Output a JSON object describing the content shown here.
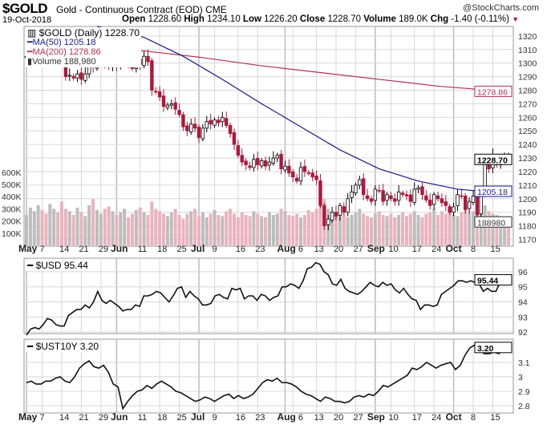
{
  "header": {
    "symbol": "$GOLD",
    "name": "Gold - Continuous Contract (EOD) CME",
    "copyright": "@StockCharts.com",
    "date": "19-Oct-2018",
    "open_label": "Open",
    "open": "1228.60",
    "high_label": "High",
    "high": "1234.10",
    "low_label": "Low",
    "low": "1226.20",
    "close_label": "Close",
    "close": "1228.70",
    "volume_label": "Volume",
    "volume": "189.0K",
    "chg_label": "Chg",
    "chg": "-1.40 (-0.11%)"
  },
  "colors": {
    "up": "#000000",
    "down": "#b0173a",
    "ma50": "#1a1a8c",
    "ma200": "#b03050",
    "vol_down": "#eab3bd",
    "vol_up": "#bdbdbd",
    "grid": "#d8d8d8"
  },
  "chart_data": [
    {
      "type": "candlestick",
      "title": "$GOLD (Daily) 1228.70",
      "legend": [
        "MA(50) 1205.18",
        "MA(200) 1278.86",
        "Volume 188,980"
      ],
      "ylim": [
        1165,
        1327
      ],
      "y_ticks": [
        1320,
        1310,
        1300,
        1290,
        1280,
        1270,
        1260,
        1250,
        1240,
        1230,
        1220,
        1210,
        1200,
        1190,
        1180,
        1170
      ],
      "vol_ticks": [
        {
          "v": 600000,
          "label": "600K"
        },
        {
          "v": 500000,
          "label": "500K"
        },
        {
          "v": 400000,
          "label": "400K"
        },
        {
          "v": 300000,
          "label": "300K"
        },
        {
          "v": 200000,
          "label": "200K"
        },
        {
          "v": 100000,
          "label": "100K"
        }
      ],
      "last_labels": {
        "close": "1228.70",
        "ma200": "1278.86",
        "ma50": "1205.18",
        "volume": "188980"
      },
      "closes": [
        1305,
        1311,
        1313,
        1315,
        1314,
        1313,
        1315,
        1318,
        1316,
        1300,
        1290,
        1291,
        1289,
        1292,
        1288,
        1292,
        1301,
        1297,
        1300,
        1305,
        1300,
        1297,
        1299,
        1298,
        1301,
        1303,
        1300,
        1296,
        1302,
        1299,
        1305,
        1301,
        1280,
        1279,
        1275,
        1268,
        1269,
        1270,
        1266,
        1262,
        1253,
        1250,
        1255,
        1252,
        1245,
        1252,
        1257,
        1255,
        1258,
        1256,
        1260,
        1254,
        1248,
        1240,
        1232,
        1227,
        1225,
        1223,
        1229,
        1225,
        1228,
        1224,
        1227,
        1230,
        1232,
        1222,
        1224,
        1219,
        1216,
        1213,
        1223,
        1220,
        1219,
        1216,
        1214,
        1195,
        1180,
        1185,
        1190,
        1187,
        1195,
        1190,
        1200,
        1205,
        1210,
        1214,
        1203,
        1200,
        1198,
        1207,
        1206,
        1198,
        1203,
        1200,
        1198,
        1205,
        1203,
        1202,
        1198,
        1207,
        1208,
        1203,
        1199,
        1195,
        1203,
        1200,
        1197,
        1195,
        1190,
        1194,
        1203,
        1202,
        1192,
        1198,
        1202,
        1188,
        1204,
        1226,
        1222,
        1232,
        1225,
        1228,
        1230,
        1228.7
      ],
      "volumes": [
        250000,
        310000,
        280000,
        330000,
        290000,
        260000,
        340000,
        300000,
        270000,
        360000,
        300000,
        280000,
        250000,
        310000,
        270000,
        240000,
        330000,
        380000,
        290000,
        260000,
        300000,
        320000,
        280000,
        250000,
        270000,
        300000,
        230000,
        260000,
        290000,
        310000,
        270000,
        250000,
        360000,
        300000,
        280000,
        260000,
        240000,
        270000,
        300000,
        250000,
        220000,
        260000,
        280000,
        300000,
        240000,
        270000,
        230000,
        260000,
        290000,
        250000,
        240000,
        280000,
        300000,
        260000,
        230000,
        270000,
        250000,
        240000,
        280000,
        260000,
        240000,
        230000,
        270000,
        250000,
        260000,
        300000,
        280000,
        250000,
        240000,
        260000,
        230000,
        250000,
        290000,
        270000,
        300000,
        330000,
        380000,
        300000,
        270000,
        250000,
        240000,
        260000,
        230000,
        250000,
        270000,
        300000,
        260000,
        240000,
        230000,
        260000,
        280000,
        250000,
        240000,
        260000,
        230000,
        250000,
        270000,
        240000,
        260000,
        280000,
        250000,
        230000,
        260000,
        270000,
        300000,
        250000,
        280000,
        260000,
        290000,
        250000,
        240000,
        270000,
        300000,
        260000,
        280000,
        250000,
        300000,
        330000,
        280000,
        260000,
        250000,
        240000,
        230000,
        188980
      ],
      "ma50": [
        [
          18,
          1327
        ],
        [
          30,
          1319
        ],
        [
          40,
          1305
        ],
        [
          50,
          1288
        ],
        [
          60,
          1270
        ],
        [
          70,
          1253
        ],
        [
          80,
          1236
        ],
        [
          90,
          1222
        ],
        [
          100,
          1213
        ],
        [
          110,
          1207
        ],
        [
          118,
          1205
        ],
        [
          123,
          1205.18
        ]
      ],
      "ma200": [
        [
          10,
          1309
        ],
        [
          30,
          1309
        ],
        [
          45,
          1304
        ],
        [
          60,
          1298
        ],
        [
          75,
          1293
        ],
        [
          90,
          1288
        ],
        [
          105,
          1283
        ],
        [
          123,
          1278.86
        ]
      ]
    },
    {
      "type": "line",
      "title": "$USD 95.44",
      "ylim": [
        91.9,
        96.9
      ],
      "y_ticks": [
        96,
        95,
        94,
        93,
        92
      ],
      "last": "95.44",
      "values": [
        91.8,
        92.2,
        92.3,
        92.2,
        92.5,
        92.9,
        92.8,
        92.5,
        92.4,
        92.4,
        93.1,
        93.3,
        93.5,
        93.5,
        93.8,
        93.6,
        94.0,
        94.7,
        94.1,
        93.9,
        94.1,
        93.9,
        93.7,
        93.4,
        93.5,
        93.5,
        93.8,
        93.7,
        94.4,
        94.4,
        94.5,
        94.7,
        94.6,
        94.3,
        94.0,
        94.4,
        94.9,
        95.0,
        94.3,
        94.7,
        94.4,
        94.2,
        93.8,
        93.8,
        93.9,
        94.4,
        94.5,
        94.3,
        94.2,
        94.9,
        94.8,
        94.9,
        94.2,
        94.4,
        94.4,
        94.1,
        94.5,
        94.4,
        94.1,
        94.3,
        94.4,
        95.0,
        95.0,
        95.2,
        95.1,
        94.9,
        95.4,
        96.2,
        96.3,
        96.6,
        96.5,
        96.0,
        95.8,
        95.2,
        95.1,
        95.5,
        94.9,
        94.7,
        94.6,
        94.5,
        94.7,
        95.0,
        95.3,
        95.1,
        95.0,
        95.3,
        95.1,
        95.2,
        94.8,
        94.6,
        94.9,
        94.5,
        94.2,
        94.1,
        93.5,
        93.8,
        93.8,
        93.7,
        93.8,
        94.5,
        94.7,
        94.9,
        95.1,
        95.4,
        95.4,
        95.3,
        95.4,
        95.3,
        95.2,
        94.7,
        94.9,
        94.7,
        94.7,
        95.3,
        95.6,
        95.44
      ]
    },
    {
      "type": "line",
      "title": "$UST10Y 3.20",
      "ylim": [
        2.75,
        3.26
      ],
      "y_ticks": [
        3.1,
        3.0,
        2.9,
        2.8
      ],
      "last": "3.20",
      "values": [
        2.96,
        2.97,
        2.95,
        2.95,
        2.97,
        2.97,
        2.99,
        3.0,
        2.97,
        2.96,
        3.0,
        3.06,
        3.09,
        3.11,
        3.07,
        3.06,
        3.08,
        3.03,
        2.95,
        2.93,
        2.78,
        2.83,
        2.87,
        2.9,
        2.91,
        2.94,
        2.92,
        2.95,
        2.97,
        2.95,
        2.93,
        2.9,
        2.89,
        2.87,
        2.85,
        2.83,
        2.84,
        2.86,
        2.85,
        2.83,
        2.85,
        2.87,
        2.88,
        2.85,
        2.87,
        2.85,
        2.86,
        2.88,
        2.92,
        2.96,
        2.98,
        2.97,
        2.99,
        2.96,
        2.96,
        2.95,
        2.93,
        2.9,
        2.88,
        2.87,
        2.85,
        2.83,
        2.86,
        2.85,
        2.83,
        2.83,
        2.82,
        2.83,
        2.86,
        2.87,
        2.86,
        2.88,
        2.87,
        2.9,
        2.94,
        2.93,
        2.95,
        2.97,
        2.99,
        3.01,
        3.06,
        3.05,
        3.07,
        3.1,
        3.08,
        3.06,
        3.08,
        3.09,
        3.1,
        3.05,
        3.08,
        3.15,
        3.2,
        3.22,
        3.18,
        3.16,
        3.16,
        3.17,
        3.16,
        3.19,
        3.2
      ]
    }
  ],
  "x_ticks": [
    {
      "label": "May",
      "day": 0,
      "bold": true
    },
    {
      "label": "7",
      "day": 4
    },
    {
      "label": "14",
      "day": 9
    },
    {
      "label": "21",
      "day": 14
    },
    {
      "label": "29",
      "day": 19
    },
    {
      "label": "Jun",
      "day": 23,
      "bold": true
    },
    {
      "label": "11",
      "day": 29
    },
    {
      "label": "18",
      "day": 34
    },
    {
      "label": "25",
      "day": 39
    },
    {
      "label": "Jul",
      "day": 44,
      "bold": true
    },
    {
      "label": "9",
      "day": 48
    },
    {
      "label": "16",
      "day": 54
    },
    {
      "label": "23",
      "day": 59
    },
    {
      "label": "Aug",
      "day": 66,
      "bold": true
    },
    {
      "label": "6",
      "day": 68
    },
    {
      "label": "13",
      "day": 74
    },
    {
      "label": "20",
      "day": 79
    },
    {
      "label": "27",
      "day": 84
    },
    {
      "label": "Sep",
      "day": 89,
      "bold": true
    },
    {
      "label": "10",
      "day": 93
    },
    {
      "label": "17",
      "day": 99
    },
    {
      "label": "24",
      "day": 104
    },
    {
      "label": "Oct",
      "day": 109,
      "bold": true
    },
    {
      "label": "8",
      "day": 114
    },
    {
      "label": "15",
      "day": 119
    }
  ]
}
